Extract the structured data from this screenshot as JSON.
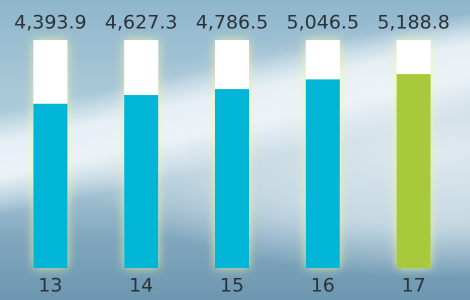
{
  "chart_data": {
    "type": "bar",
    "categories": [
      "13",
      "14",
      "15",
      "16",
      "17"
    ],
    "values": [
      4393.9,
      4627.3,
      4786.5,
      5046.5,
      5188.8
    ],
    "value_labels": [
      "4,393.9",
      "4,627.3",
      "4,786.5",
      "5,046.5",
      "5,188.8"
    ],
    "colors": [
      "#00b5d6",
      "#00b5d6",
      "#00b5d6",
      "#00b5d6",
      "#a9c93c"
    ],
    "ylim": [
      0,
      6100
    ]
  }
}
